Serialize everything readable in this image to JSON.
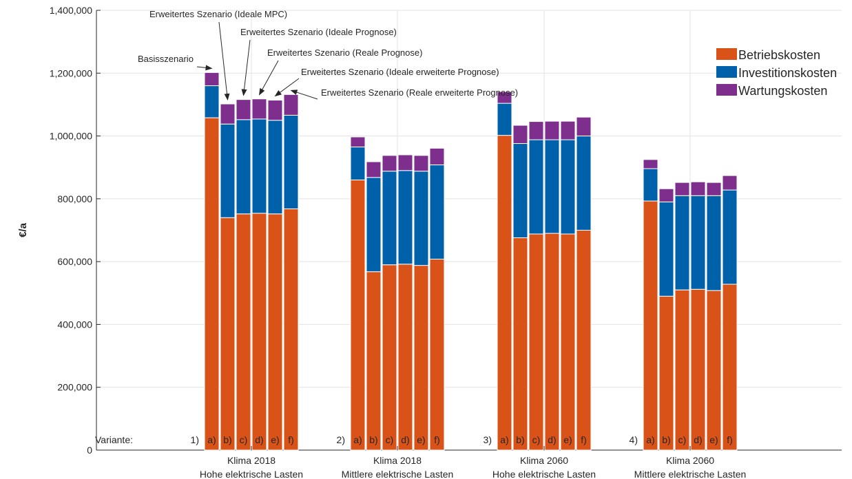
{
  "chart_data": {
    "type": "bar",
    "stacked": true,
    "ylabel": "€/a",
    "ylim": [
      0,
      1400000
    ],
    "yticks": [
      0,
      200000,
      400000,
      600000,
      800000,
      1000000,
      1200000,
      1400000
    ],
    "ytick_labels": [
      "0",
      "200,000",
      "400,000",
      "600,000",
      "800,000",
      "1,000,000",
      "1,200,000",
      "1,400,000"
    ],
    "grid": true,
    "legend_position": "top-right",
    "variante_label": "Variante:",
    "groups": [
      {
        "number": "1)",
        "label_line1": "Klima 2018",
        "label_line2": "Hohe elektrische Lasten"
      },
      {
        "number": "2)",
        "label_line1": "Klima 2018",
        "label_line2": "Mittlere elektrische Lasten"
      },
      {
        "number": "3)",
        "label_line1": "Klima 2060",
        "label_line2": "Hohe elektrische Lasten"
      },
      {
        "number": "4)",
        "label_line1": "Klima 2060",
        "label_line2": "Mittlere elektrische Lasten"
      }
    ],
    "bar_letters": [
      "a)",
      "b)",
      "c)",
      "d)",
      "e)",
      "f)"
    ],
    "series": [
      {
        "name": "Betriebskosten",
        "color": "#D95319",
        "values": [
          [
            1058000,
            740000,
            752000,
            754000,
            752000,
            768000
          ],
          [
            860000,
            568000,
            590000,
            592000,
            588000,
            608000
          ],
          [
            1002000,
            676000,
            688000,
            690000,
            688000,
            700000
          ],
          [
            793000,
            490000,
            510000,
            512000,
            508000,
            528000
          ]
        ]
      },
      {
        "name": "Investitionskosten",
        "color": "#0061AB",
        "values": [
          [
            102000,
            298000,
            300000,
            300000,
            298000,
            298000
          ],
          [
            105000,
            300000,
            298000,
            298000,
            300000,
            300000
          ],
          [
            102000,
            300000,
            300000,
            298000,
            300000,
            300000
          ],
          [
            103000,
            300000,
            300000,
            298000,
            302000,
            300000
          ]
        ]
      },
      {
        "name": "Wartungskosten",
        "color": "#7E2F8E",
        "values": [
          [
            42000,
            64000,
            64000,
            64000,
            64000,
            66000
          ],
          [
            32000,
            50000,
            50000,
            50000,
            50000,
            53000
          ],
          [
            37000,
            58000,
            58000,
            59000,
            59000,
            60000
          ],
          [
            29000,
            42000,
            42000,
            44000,
            42000,
            46000
          ]
        ]
      }
    ],
    "annotations": [
      {
        "text": "Basisszenario",
        "bar": 0
      },
      {
        "text": "Erweitertes Szenario (Ideale MPC)",
        "bar": 1
      },
      {
        "text": "Erweitertes Szenario (Ideale Prognose)",
        "bar": 2
      },
      {
        "text": "Erweitertes Szenario (Reale Prognose)",
        "bar": 3
      },
      {
        "text": "Erweitertes Szenario (Ideale erweiterte Prognose)",
        "bar": 4
      },
      {
        "text": "Erweitertes Szenario (Reale erweiterte Prognose)",
        "bar": 5
      }
    ]
  }
}
